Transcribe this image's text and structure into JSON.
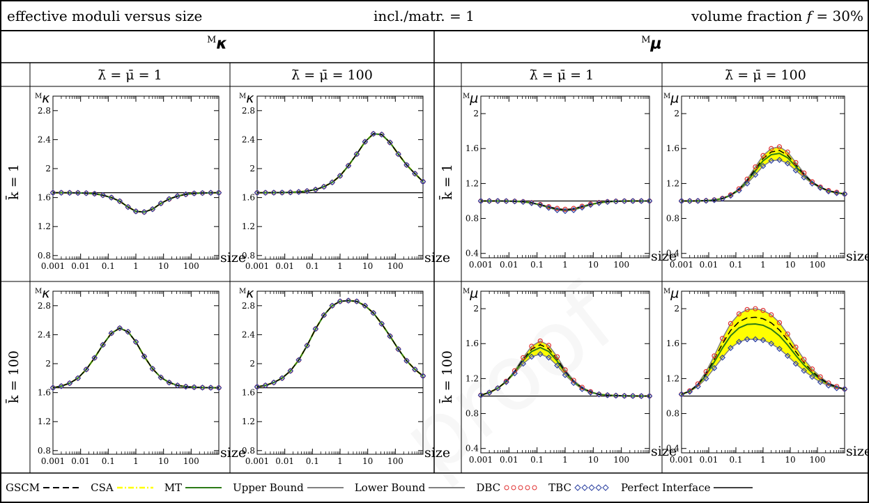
{
  "header": {
    "left": "effective moduli versus size",
    "center": "incl./matr. = 1",
    "right_prefix": "volume fraction ",
    "right_var": "f",
    "right_suffix": " = 30%"
  },
  "col_groups": [
    {
      "label_sup": "M",
      "label_sym": "κ"
    },
    {
      "label_sup": "M",
      "label_sym": "μ"
    }
  ],
  "sub_headers": [
    "λ̄ = μ̄ = 1",
    "λ̄ = μ̄ = 100",
    "λ̄ = μ̄ = 1",
    "λ̄ = μ̄ = 100"
  ],
  "row_labels": [
    "k̄ = 1",
    "k̄ = 100"
  ],
  "watermark": "proof",
  "legend": [
    {
      "label": "GSCM",
      "style": "dashed",
      "color": "#000000"
    },
    {
      "label": "CSA",
      "style": "dashdot",
      "color": "#ffff00"
    },
    {
      "label": "MT",
      "style": "solid",
      "color": "#2a7a16"
    },
    {
      "label": "Upper Bound",
      "style": "solid",
      "color": "#808080"
    },
    {
      "label": "Lower Bound",
      "style": "solid",
      "color": "#808080"
    },
    {
      "label": "DBC",
      "style": "circles",
      "color": "#e03030"
    },
    {
      "label": "TBC",
      "style": "diamonds",
      "color": "#2a3fa0"
    },
    {
      "label": "Perfect Interface",
      "style": "solid",
      "color": "#000000"
    }
  ],
  "chart_data": [
    {
      "type": "line",
      "ylabel_sup": "M",
      "ylabel": "κ",
      "xlabel": "size",
      "xscale": "log",
      "xlim": [
        0.001,
        1000
      ],
      "ylim": [
        0.75,
        3.0
      ],
      "yticks": [
        0.8,
        1.2,
        1.6,
        2,
        2.4,
        2.8
      ],
      "ytick_labels": [
        "0.8",
        "1.2",
        "1.6",
        "2",
        "2.4",
        "2.8"
      ],
      "xticks": [
        0.001,
        0.01,
        0.1,
        1,
        10,
        100
      ],
      "xtick_labels": [
        "0.001",
        "0.01",
        "0.1",
        "1",
        "10",
        "100"
      ],
      "reference": 1.667,
      "x": [
        0.001,
        0.002,
        0.004,
        0.008,
        0.016,
        0.032,
        0.064,
        0.13,
        0.26,
        0.52,
        1,
        2,
        4,
        8,
        16,
        32,
        64,
        128,
        256,
        512,
        1000
      ],
      "upper": [
        1.667,
        1.667,
        1.666,
        1.665,
        1.661,
        1.653,
        1.633,
        1.6,
        1.55,
        1.47,
        1.41,
        1.4,
        1.44,
        1.52,
        1.58,
        1.62,
        1.645,
        1.658,
        1.663,
        1.666,
        1.667
      ],
      "lower": [
        1.667,
        1.667,
        1.666,
        1.665,
        1.661,
        1.653,
        1.633,
        1.6,
        1.55,
        1.47,
        1.41,
        1.4,
        1.44,
        1.52,
        1.58,
        1.62,
        1.645,
        1.658,
        1.663,
        1.666,
        1.667
      ]
    },
    {
      "type": "line",
      "ylabel_sup": "M",
      "ylabel": "κ",
      "xlabel": "size",
      "xscale": "log",
      "xlim": [
        0.001,
        1000
      ],
      "ylim": [
        0.75,
        3.0
      ],
      "yticks": [
        0.8,
        1.2,
        1.6,
        2,
        2.4,
        2.8
      ],
      "ytick_labels": [
        "0.8",
        "1.2",
        "1.6",
        "2",
        "2.4",
        "2.8"
      ],
      "xticks": [
        0.001,
        0.01,
        0.1,
        1,
        10,
        100
      ],
      "xtick_labels": [
        "0.001",
        "0.01",
        "0.1",
        "1",
        "10",
        "100"
      ],
      "reference": 1.667,
      "x": [
        0.001,
        0.002,
        0.004,
        0.008,
        0.016,
        0.032,
        0.064,
        0.13,
        0.26,
        0.52,
        1,
        2,
        4,
        8,
        16,
        32,
        64,
        128,
        256,
        512,
        1000
      ],
      "upper": [
        1.667,
        1.667,
        1.668,
        1.669,
        1.672,
        1.678,
        1.69,
        1.71,
        1.75,
        1.81,
        1.9,
        2.04,
        2.2,
        2.37,
        2.48,
        2.47,
        2.36,
        2.2,
        2.05,
        1.93,
        1.82
      ],
      "lower": [
        1.667,
        1.667,
        1.668,
        1.669,
        1.672,
        1.678,
        1.69,
        1.71,
        1.75,
        1.81,
        1.9,
        2.04,
        2.2,
        2.37,
        2.48,
        2.47,
        2.36,
        2.2,
        2.05,
        1.93,
        1.82
      ]
    },
    {
      "type": "line",
      "ylabel_sup": "M",
      "ylabel": "μ",
      "xlabel": "size",
      "xscale": "log",
      "xlim": [
        0.001,
        1000
      ],
      "ylim": [
        0.35,
        2.2
      ],
      "yticks": [
        0.4,
        0.8,
        1.2,
        1.6,
        2
      ],
      "ytick_labels": [
        "0.4",
        "0.8",
        "1.2",
        "1.6",
        "2"
      ],
      "xticks": [
        0.001,
        0.01,
        0.1,
        1,
        10,
        100
      ],
      "xtick_labels": [
        "0.001",
        "0.01",
        "0.1",
        "1",
        "10",
        "100"
      ],
      "reference": 1.0,
      "x": [
        0.001,
        0.002,
        0.004,
        0.008,
        0.016,
        0.032,
        0.064,
        0.13,
        0.26,
        0.52,
        1,
        2,
        4,
        8,
        16,
        32,
        64,
        128,
        256,
        512,
        1000
      ],
      "upper": [
        1.0,
        1.0,
        1.0,
        0.999,
        0.997,
        0.992,
        0.98,
        0.96,
        0.935,
        0.915,
        0.905,
        0.915,
        0.94,
        0.965,
        0.982,
        0.992,
        0.997,
        0.999,
        1.0,
        1.0,
        1.0
      ],
      "lower": [
        1.0,
        1.0,
        1.0,
        0.999,
        0.996,
        0.99,
        0.976,
        0.952,
        0.922,
        0.895,
        0.885,
        0.895,
        0.925,
        0.955,
        0.977,
        0.99,
        0.996,
        0.999,
        1.0,
        1.0,
        1.0
      ]
    },
    {
      "type": "line",
      "ylabel_sup": "M",
      "ylabel": "μ",
      "xlabel": "size",
      "xscale": "log",
      "xlim": [
        0.001,
        1000
      ],
      "ylim": [
        0.35,
        2.2
      ],
      "yticks": [
        0.4,
        0.8,
        1.2,
        1.6,
        2
      ],
      "ytick_labels": [
        "0.4",
        "0.8",
        "1.2",
        "1.6",
        "2"
      ],
      "xticks": [
        0.001,
        0.01,
        0.1,
        1,
        10,
        100
      ],
      "xtick_labels": [
        "0.001",
        "0.01",
        "0.1",
        "1",
        "10",
        "100"
      ],
      "reference": 1.0,
      "x": [
        0.001,
        0.002,
        0.004,
        0.008,
        0.016,
        0.032,
        0.064,
        0.13,
        0.26,
        0.52,
        1,
        2,
        4,
        8,
        16,
        32,
        64,
        128,
        256,
        512,
        1000
      ],
      "upper": [
        1.0,
        1.0,
        1.001,
        1.004,
        1.012,
        1.03,
        1.07,
        1.14,
        1.25,
        1.39,
        1.52,
        1.6,
        1.62,
        1.56,
        1.44,
        1.32,
        1.22,
        1.16,
        1.12,
        1.1,
        1.08
      ],
      "lower": [
        1.0,
        1.0,
        1.001,
        1.003,
        1.01,
        1.026,
        1.06,
        1.12,
        1.2,
        1.3,
        1.4,
        1.46,
        1.47,
        1.43,
        1.35,
        1.27,
        1.2,
        1.15,
        1.11,
        1.09,
        1.08
      ]
    },
    {
      "type": "line",
      "ylabel_sup": "M",
      "ylabel": "κ",
      "xlabel": "size",
      "xscale": "log",
      "xlim": [
        0.001,
        1000
      ],
      "ylim": [
        0.75,
        3.0
      ],
      "yticks": [
        0.8,
        1.2,
        1.6,
        2,
        2.4,
        2.8
      ],
      "ytick_labels": [
        "0.8",
        "1.2",
        "1.6",
        "2",
        "2.4",
        "2.8"
      ],
      "xticks": [
        0.001,
        0.01,
        0.1,
        1,
        10,
        100
      ],
      "xtick_labels": [
        "0.001",
        "0.01",
        "0.1",
        "1",
        "10",
        "100"
      ],
      "reference": 1.667,
      "x": [
        0.001,
        0.002,
        0.004,
        0.008,
        0.016,
        0.032,
        0.064,
        0.13,
        0.26,
        0.52,
        1,
        2,
        4,
        8,
        16,
        32,
        64,
        128,
        256,
        512,
        1000
      ],
      "upper": [
        1.667,
        1.69,
        1.73,
        1.8,
        1.92,
        2.08,
        2.26,
        2.42,
        2.49,
        2.44,
        2.3,
        2.1,
        1.93,
        1.81,
        1.74,
        1.7,
        1.683,
        1.675,
        1.67,
        1.668,
        1.667
      ],
      "lower": [
        1.667,
        1.69,
        1.73,
        1.8,
        1.92,
        2.08,
        2.26,
        2.42,
        2.49,
        2.44,
        2.3,
        2.1,
        1.93,
        1.81,
        1.74,
        1.7,
        1.683,
        1.675,
        1.67,
        1.668,
        1.667
      ]
    },
    {
      "type": "line",
      "ylabel_sup": "M",
      "ylabel": "κ",
      "xlabel": "size",
      "xscale": "log",
      "xlim": [
        0.001,
        1000
      ],
      "ylim": [
        0.75,
        3.0
      ],
      "yticks": [
        0.8,
        1.2,
        1.6,
        2,
        2.4,
        2.8
      ],
      "ytick_labels": [
        "0.8",
        "1.2",
        "1.6",
        "2",
        "2.4",
        "2.8"
      ],
      "xticks": [
        0.001,
        0.01,
        0.1,
        1,
        10,
        100
      ],
      "xtick_labels": [
        "0.001",
        "0.01",
        "0.1",
        "1",
        "10",
        "100"
      ],
      "reference": 1.667,
      "x": [
        0.001,
        0.002,
        0.004,
        0.008,
        0.016,
        0.032,
        0.064,
        0.13,
        0.26,
        0.52,
        1,
        2,
        4,
        8,
        16,
        32,
        64,
        128,
        256,
        512,
        1000
      ],
      "upper": [
        1.68,
        1.7,
        1.74,
        1.8,
        1.9,
        2.05,
        2.25,
        2.48,
        2.67,
        2.8,
        2.86,
        2.87,
        2.86,
        2.8,
        2.7,
        2.55,
        2.38,
        2.2,
        2.04,
        1.92,
        1.83
      ],
      "lower": [
        1.68,
        1.7,
        1.74,
        1.8,
        1.9,
        2.05,
        2.25,
        2.48,
        2.67,
        2.8,
        2.86,
        2.87,
        2.86,
        2.8,
        2.7,
        2.55,
        2.38,
        2.2,
        2.04,
        1.92,
        1.83
      ]
    },
    {
      "type": "line",
      "ylabel_sup": "M",
      "ylabel": "μ",
      "xlabel": "size",
      "xscale": "log",
      "xlim": [
        0.001,
        1000
      ],
      "ylim": [
        0.35,
        2.2
      ],
      "yticks": [
        0.4,
        0.8,
        1.2,
        1.6,
        2
      ],
      "ytick_labels": [
        "0.4",
        "0.8",
        "1.2",
        "1.6",
        "2"
      ],
      "xticks": [
        0.001,
        0.01,
        0.1,
        1,
        10,
        100
      ],
      "xtick_labels": [
        "0.001",
        "0.01",
        "0.1",
        "1",
        "10",
        "100"
      ],
      "reference": 1.0,
      "x": [
        0.001,
        0.002,
        0.004,
        0.008,
        0.016,
        0.032,
        0.064,
        0.13,
        0.26,
        0.52,
        1,
        2,
        4,
        8,
        16,
        32,
        64,
        128,
        256,
        512,
        1000
      ],
      "upper": [
        1.01,
        1.04,
        1.09,
        1.17,
        1.29,
        1.44,
        1.57,
        1.63,
        1.58,
        1.45,
        1.3,
        1.18,
        1.1,
        1.05,
        1.02,
        1.01,
        1.005,
        1.002,
        1.001,
        1.0,
        1.0
      ],
      "lower": [
        1.01,
        1.04,
        1.09,
        1.16,
        1.26,
        1.37,
        1.45,
        1.48,
        1.44,
        1.35,
        1.24,
        1.15,
        1.08,
        1.04,
        1.02,
        1.01,
        1.005,
        1.002,
        1.001,
        1.0,
        1.0
      ]
    },
    {
      "type": "line",
      "ylabel_sup": "M",
      "ylabel": "μ",
      "xlabel": "size",
      "xscale": "log",
      "xlim": [
        0.001,
        1000
      ],
      "ylim": [
        0.35,
        2.2
      ],
      "yticks": [
        0.4,
        0.8,
        1.2,
        1.6,
        2
      ],
      "ytick_labels": [
        "0.4",
        "0.8",
        "1.2",
        "1.6",
        "2"
      ],
      "xticks": [
        0.001,
        0.01,
        0.1,
        1,
        10,
        100
      ],
      "xtick_labels": [
        "0.001",
        "0.01",
        "0.1",
        "1",
        "10",
        "100"
      ],
      "reference": 1.0,
      "x": [
        0.001,
        0.002,
        0.004,
        0.008,
        0.016,
        0.032,
        0.064,
        0.13,
        0.26,
        0.52,
        1,
        2,
        4,
        8,
        16,
        32,
        64,
        128,
        256,
        512,
        1000
      ],
      "upper": [
        1.02,
        1.06,
        1.14,
        1.28,
        1.46,
        1.66,
        1.83,
        1.94,
        1.99,
        2.0,
        1.98,
        1.93,
        1.84,
        1.71,
        1.56,
        1.42,
        1.31,
        1.22,
        1.15,
        1.11,
        1.08
      ],
      "lower": [
        1.02,
        1.05,
        1.11,
        1.2,
        1.32,
        1.44,
        1.55,
        1.62,
        1.65,
        1.65,
        1.64,
        1.6,
        1.54,
        1.46,
        1.37,
        1.29,
        1.22,
        1.16,
        1.12,
        1.09,
        1.08
      ]
    }
  ]
}
